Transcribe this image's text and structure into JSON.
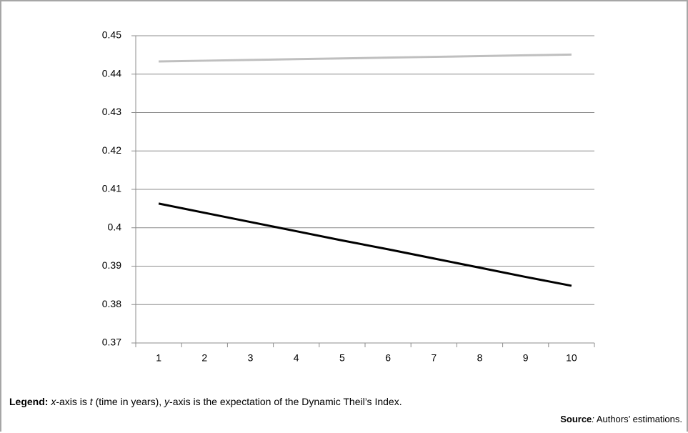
{
  "chart_data": {
    "type": "line",
    "categories": [
      "1",
      "2",
      "3",
      "4",
      "5",
      "6",
      "7",
      "8",
      "9",
      "10"
    ],
    "series": [
      {
        "color": "#bfbfbf",
        "values": [
          0.4433,
          0.4435,
          0.4437,
          0.4439,
          0.4441,
          0.4443,
          0.4445,
          0.4447,
          0.4449,
          0.4451
        ]
      },
      {
        "color": "#000000",
        "values": [
          0.4063,
          0.4039,
          0.4015,
          0.3991,
          0.3967,
          0.3944,
          0.392,
          0.3896,
          0.3872,
          0.3849
        ]
      }
    ],
    "ylim": [
      0.37,
      0.45
    ],
    "yticks": [
      0.37,
      0.38,
      0.39,
      0.4,
      0.41,
      0.42,
      0.43,
      0.44,
      0.45
    ],
    "grid": true,
    "legend_note": {
      "label": "Legend:",
      "x": "x",
      "part1": "-axis is ",
      "t": "t",
      "part2": " (time in years), ",
      "y": "y",
      "part3": "-axis is the expectation of the Dynamic Theil’s Index."
    },
    "source_note": {
      "label": "Source",
      "colon": ":",
      "text": " Authors’ estimations."
    }
  }
}
